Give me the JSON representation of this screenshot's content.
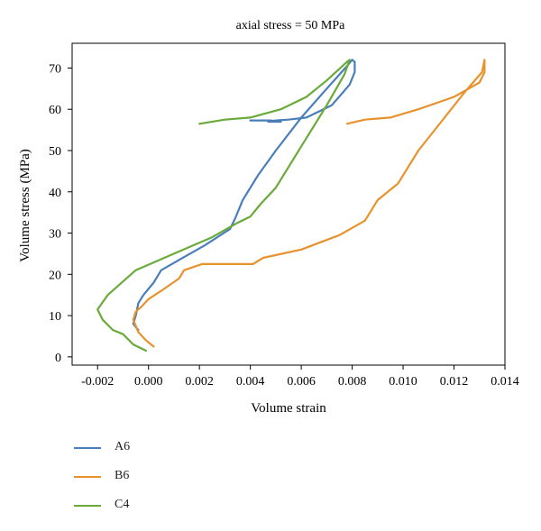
{
  "chart_data": {
    "type": "line",
    "title": "axial stress = 50 MPa",
    "xlabel": "Volume strain",
    "ylabel": "Volume stress (MPa)",
    "xlim": [
      -0.003,
      0.014
    ],
    "ylim": [
      -2,
      76
    ],
    "xticks": [
      -0.002,
      0.0,
      0.002,
      0.004,
      0.006,
      0.008,
      0.01,
      0.012,
      0.014
    ],
    "xtick_labels": [
      "-0.002",
      "0.000",
      "0.002",
      "0.004",
      "0.006",
      "0.008",
      "0.010",
      "0.012",
      "0.014"
    ],
    "yticks": [
      0,
      10,
      20,
      30,
      40,
      50,
      60,
      70
    ],
    "ytick_labels": [
      "0",
      "10",
      "20",
      "30",
      "40",
      "50",
      "60",
      "70"
    ],
    "grid": false,
    "legend_position": "below",
    "series": [
      {
        "name": "A6",
        "color": "#4a7ebb",
        "points": [
          [
            -0.0004,
            6.5
          ],
          [
            -0.0006,
            8
          ],
          [
            -0.0005,
            10
          ],
          [
            -0.0004,
            13
          ],
          [
            -0.0002,
            15
          ],
          [
            0.0002,
            18
          ],
          [
            0.0004,
            20
          ],
          [
            0.0005,
            21
          ],
          [
            0.0012,
            23.5
          ],
          [
            0.0022,
            27
          ],
          [
            0.0032,
            31
          ],
          [
            0.0034,
            33.5
          ],
          [
            0.0037,
            38
          ],
          [
            0.0043,
            44
          ],
          [
            0.005,
            50
          ],
          [
            0.006,
            58
          ],
          [
            0.007,
            65
          ],
          [
            0.0078,
            70.5
          ],
          [
            0.008,
            72
          ],
          [
            0.0081,
            71.5
          ],
          [
            0.0081,
            69
          ],
          [
            0.0079,
            66
          ],
          [
            0.0072,
            61
          ],
          [
            0.0062,
            58
          ],
          [
            0.0055,
            57.5
          ],
          [
            0.005,
            57.3
          ],
          [
            0.0047,
            57
          ],
          [
            0.0052,
            57
          ],
          [
            0.0048,
            57.3
          ],
          [
            0.004,
            57.3
          ]
        ]
      },
      {
        "name": "B6",
        "color": "#e8922e",
        "points": [
          [
            0.0002,
            2.5
          ],
          [
            -0.0001,
            4
          ],
          [
            -0.0004,
            6
          ],
          [
            -0.0006,
            9
          ],
          [
            -0.0005,
            11
          ],
          [
            -0.0003,
            12
          ],
          [
            0.0,
            14
          ],
          [
            0.0005,
            16
          ],
          [
            0.0012,
            19
          ],
          [
            0.0014,
            21
          ],
          [
            0.0021,
            22.5
          ],
          [
            0.0041,
            22.5
          ],
          [
            0.0045,
            24
          ],
          [
            0.006,
            26
          ],
          [
            0.0075,
            29.5
          ],
          [
            0.0085,
            33
          ],
          [
            0.0087,
            35
          ],
          [
            0.009,
            38
          ],
          [
            0.0098,
            42
          ],
          [
            0.0106,
            50
          ],
          [
            0.0115,
            57
          ],
          [
            0.0124,
            64
          ],
          [
            0.0131,
            69
          ],
          [
            0.0132,
            72
          ],
          [
            0.0132,
            69
          ],
          [
            0.013,
            66.5
          ],
          [
            0.012,
            63
          ],
          [
            0.0106,
            60
          ],
          [
            0.0095,
            58
          ],
          [
            0.0085,
            57.5
          ],
          [
            0.0078,
            56.5
          ]
        ]
      },
      {
        "name": "C4",
        "color": "#6aaa3a",
        "points": [
          [
            -0.0001,
            1.5
          ],
          [
            -0.0006,
            3
          ],
          [
            -0.001,
            5.5
          ],
          [
            -0.0014,
            6.5
          ],
          [
            -0.0018,
            9
          ],
          [
            -0.002,
            11.5
          ],
          [
            -0.0016,
            15
          ],
          [
            -0.0005,
            21
          ],
          [
            0.001,
            25
          ],
          [
            0.0025,
            29
          ],
          [
            0.0035,
            32.5
          ],
          [
            0.004,
            34
          ],
          [
            0.0044,
            37
          ],
          [
            0.005,
            41
          ],
          [
            0.006,
            51
          ],
          [
            0.007,
            61
          ],
          [
            0.0077,
            68.5
          ],
          [
            0.0079,
            72
          ],
          [
            0.0078,
            71.5
          ],
          [
            0.007,
            67
          ],
          [
            0.0062,
            63
          ],
          [
            0.0052,
            60
          ],
          [
            0.004,
            58
          ],
          [
            0.003,
            57.5
          ],
          [
            0.002,
            56.5
          ]
        ]
      }
    ]
  }
}
